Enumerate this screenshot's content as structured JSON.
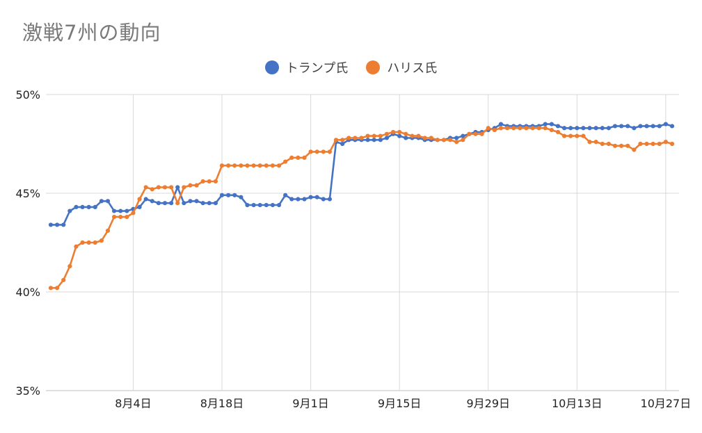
{
  "chart_data": {
    "type": "line",
    "title": "激戦7州の動向",
    "y_tick_labels": [
      "50%",
      "45%",
      "40%",
      "35%"
    ],
    "y_ticks": [
      50,
      45,
      40,
      35
    ],
    "ylim": [
      35,
      50
    ],
    "x_tick_labels": [
      "8月4日",
      "8月18日",
      "9月1日",
      "9月15日",
      "9月29日",
      "10月13日",
      "10月27日"
    ],
    "x_tick_days": [
      13,
      27,
      41,
      55,
      69,
      83,
      97
    ],
    "x_days": [
      0,
      1,
      2,
      3,
      4,
      5,
      6,
      7,
      8,
      9,
      10,
      11,
      12,
      13,
      14,
      15,
      16,
      17,
      18,
      19,
      20,
      21,
      22,
      23,
      24,
      25,
      26,
      27,
      28,
      29,
      30,
      31,
      32,
      33,
      34,
      35,
      36,
      37,
      38,
      39,
      40,
      41,
      42,
      43,
      44,
      45,
      46,
      47,
      48,
      49,
      50,
      51,
      52,
      53,
      54,
      55,
      56,
      57,
      58,
      59,
      60,
      61,
      62,
      63,
      64,
      65,
      66,
      67,
      68,
      69,
      70,
      71,
      72,
      73,
      74,
      75,
      76,
      77,
      78,
      79,
      80,
      81,
      82,
      83,
      84,
      85,
      86,
      87,
      88,
      89,
      90,
      91,
      92,
      93,
      94,
      95,
      96,
      97,
      98
    ],
    "grid": true,
    "legend_position": "top",
    "series": [
      {
        "name": "トランプ氏",
        "color": "#4472C4",
        "values": [
          43.4,
          43.4,
          43.4,
          44.1,
          44.3,
          44.3,
          44.3,
          44.3,
          44.6,
          44.6,
          44.1,
          44.1,
          44.1,
          44.2,
          44.3,
          44.7,
          44.6,
          44.5,
          44.5,
          44.5,
          45.3,
          44.5,
          44.6,
          44.6,
          44.5,
          44.5,
          44.5,
          44.9,
          44.9,
          44.9,
          44.8,
          44.4,
          44.4,
          44.4,
          44.4,
          44.4,
          44.4,
          44.9,
          44.7,
          44.7,
          44.7,
          44.8,
          44.8,
          44.7,
          44.7,
          47.6,
          47.5,
          47.7,
          47.7,
          47.7,
          47.7,
          47.7,
          47.7,
          47.8,
          48.0,
          47.9,
          47.8,
          47.8,
          47.8,
          47.7,
          47.7,
          47.7,
          47.7,
          47.8,
          47.8,
          47.9,
          48.0,
          48.1,
          48.1,
          48.2,
          48.3,
          48.5,
          48.4,
          48.4,
          48.4,
          48.4,
          48.4,
          48.4,
          48.5,
          48.5,
          48.4,
          48.3,
          48.3,
          48.3,
          48.3,
          48.3,
          48.3,
          48.3,
          48.3,
          48.4,
          48.4,
          48.4,
          48.3,
          48.4,
          48.4,
          48.4,
          48.4,
          48.5,
          48.4
        ]
      },
      {
        "name": "ハリス氏",
        "color": "#ED7D31",
        "values": [
          40.2,
          40.2,
          40.6,
          41.3,
          42.3,
          42.5,
          42.5,
          42.5,
          42.6,
          43.1,
          43.8,
          43.8,
          43.8,
          44.0,
          44.7,
          45.3,
          45.2,
          45.3,
          45.3,
          45.3,
          44.5,
          45.3,
          45.4,
          45.4,
          45.6,
          45.6,
          45.6,
          46.4,
          46.4,
          46.4,
          46.4,
          46.4,
          46.4,
          46.4,
          46.4,
          46.4,
          46.4,
          46.6,
          46.8,
          46.8,
          46.8,
          47.1,
          47.1,
          47.1,
          47.1,
          47.7,
          47.7,
          47.8,
          47.8,
          47.8,
          47.9,
          47.9,
          47.9,
          48.0,
          48.1,
          48.1,
          48.0,
          47.9,
          47.9,
          47.8,
          47.8,
          47.7,
          47.7,
          47.7,
          47.6,
          47.7,
          48.0,
          48.0,
          48.0,
          48.3,
          48.2,
          48.3,
          48.3,
          48.3,
          48.3,
          48.3,
          48.3,
          48.3,
          48.3,
          48.2,
          48.1,
          47.9,
          47.9,
          47.9,
          47.9,
          47.6,
          47.6,
          47.5,
          47.5,
          47.4,
          47.4,
          47.4,
          47.2,
          47.5,
          47.5,
          47.5,
          47.5,
          47.6,
          47.5
        ]
      }
    ]
  }
}
